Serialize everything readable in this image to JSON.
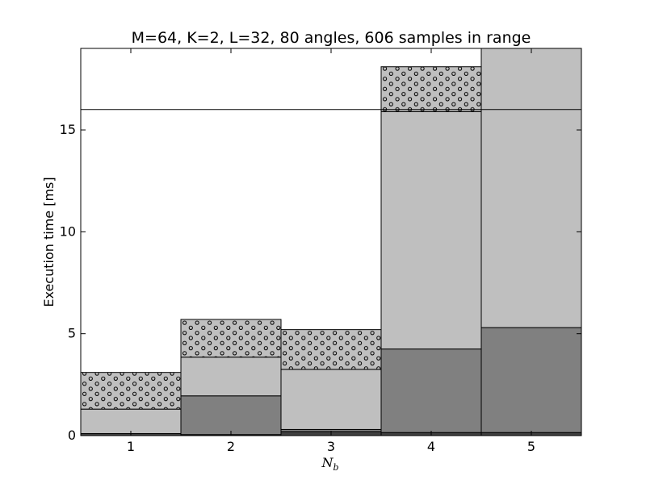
{
  "chart_data": {
    "type": "bar",
    "stacked": true,
    "title": "M=64, K=2, L=32, 80 angles, 606 samples in range",
    "xlabel_main": "N",
    "xlabel_sub": "b",
    "ylabel": "Execution time [ms]",
    "categories": [
      "1",
      "2",
      "3",
      "4",
      "5"
    ],
    "x": [
      1,
      2,
      3,
      4,
      5
    ],
    "xlim": [
      0.5,
      5.5
    ],
    "ylim": [
      0,
      19
    ],
    "yticks": [
      0,
      5,
      10,
      15
    ],
    "reference_line": 16,
    "grid": false,
    "series": [
      {
        "color": "#404040",
        "pattern": "none",
        "values": [
          0.1,
          0.05,
          0.2,
          0.15,
          0.15
        ]
      },
      {
        "color": "#808080",
        "pattern": "none",
        "values": [
          0.0,
          1.9,
          0.1,
          4.1,
          5.15
        ]
      },
      {
        "color": "#bfbfbf",
        "pattern": "none",
        "values": [
          1.2,
          1.9,
          2.95,
          11.65,
          13.75
        ]
      },
      {
        "color": "#bfbfbf",
        "pattern": "dots",
        "values": [
          1.8,
          1.85,
          1.95,
          2.2,
          0.0
        ]
      }
    ]
  }
}
